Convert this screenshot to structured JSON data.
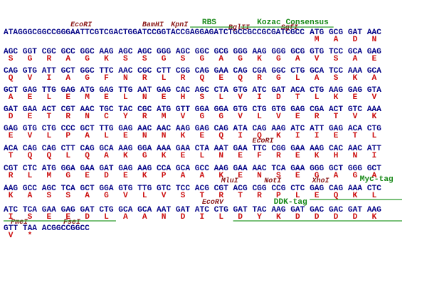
{
  "features": [
    {
      "label": "EcoRI",
      "kind": "enzyme"
    },
    {
      "label": "BamHI",
      "kind": "enzyme"
    },
    {
      "label": "KpnI",
      "kind": "enzyme"
    },
    {
      "label": "RBS",
      "kind": "tag"
    },
    {
      "label": "BglII",
      "kind": "enzyme"
    },
    {
      "label": "Kozac Consensus",
      "kind": "tag"
    },
    {
      "label": "SgfI",
      "kind": "enzyme"
    },
    {
      "label": "EcoRI",
      "kind": "enzyme"
    },
    {
      "label": "MluI",
      "kind": "enzyme"
    },
    {
      "label": "NotI",
      "kind": "enzyme"
    },
    {
      "label": "XhoI",
      "kind": "enzyme"
    },
    {
      "label": "Myc-tag",
      "kind": "tag"
    },
    {
      "label": "EcoRV",
      "kind": "enzyme"
    },
    {
      "label": "DDK-tag",
      "kind": "tag"
    },
    {
      "label": "PmeI",
      "kind": "enzyme"
    },
    {
      "label": "FseI",
      "kind": "enzyme"
    }
  ],
  "lines": [
    {
      "leader": "ATAGGGCGGCCGGGAATTCGTCGACTGGATCCGGTACCGAGGAGATCTGCCGCCGCGATCGCC",
      "codons": [
        "ATG",
        "GCG",
        "GAT",
        "AAC"
      ],
      "amino_acids": [
        "M",
        "A",
        "D",
        "N"
      ]
    },
    {
      "codons": [
        "AGC",
        "GGT",
        "CGC",
        "GCC",
        "GGC",
        "AAG",
        "AGC",
        "AGC",
        "GGG",
        "AGC",
        "GGC",
        "GCG",
        "GGG",
        "AAG",
        "GGG",
        "GCG",
        "GTG",
        "TCC",
        "GCA",
        "GAG"
      ],
      "amino_acids": [
        "S",
        "G",
        "R",
        "A",
        "G",
        "K",
        "S",
        "S",
        "G",
        "S",
        "G",
        "A",
        "G",
        "K",
        "G",
        "A",
        "V",
        "S",
        "A",
        "E"
      ]
    },
    {
      "codons": [
        "CAG",
        "GTG",
        "ATT",
        "GCT",
        "GGC",
        "TTC",
        "AAC",
        "CGC",
        "CTT",
        "CGG",
        "CAG",
        "GAA",
        "CAG",
        "CGA",
        "GGC",
        "CTG",
        "GCA",
        "TCC",
        "AAA",
        "GCA"
      ],
      "amino_acids": [
        "Q",
        "V",
        "I",
        "A",
        "G",
        "F",
        "N",
        "R",
        "L",
        "R",
        "Q",
        "E",
        "Q",
        "R",
        "G",
        "L",
        "A",
        "S",
        "K",
        "A"
      ]
    },
    {
      "codons": [
        "GCT",
        "GAG",
        "TTG",
        "GAG",
        "ATG",
        "GAG",
        "TTG",
        "AAT",
        "GAG",
        "CAC",
        "AGC",
        "CTA",
        "GTG",
        "ATC",
        "GAT",
        "ACA",
        "CTG",
        "AAG",
        "GAG",
        "GTA"
      ],
      "amino_acids": [
        "A",
        "E",
        "L",
        "E",
        "M",
        "E",
        "L",
        "N",
        "E",
        "H",
        "S",
        "L",
        "V",
        "I",
        "D",
        "T",
        "L",
        "K",
        "E",
        "V"
      ]
    },
    {
      "codons": [
        "GAT",
        "GAA",
        "ACT",
        "CGT",
        "AAC",
        "TGC",
        "TAC",
        "CGC",
        "ATG",
        "GTT",
        "GGA",
        "GGA",
        "GTG",
        "CTG",
        "GTG",
        "GAG",
        "CGA",
        "ACT",
        "GTC",
        "AAA"
      ],
      "amino_acids": [
        "D",
        "E",
        "T",
        "R",
        "N",
        "C",
        "Y",
        "R",
        "M",
        "V",
        "G",
        "G",
        "V",
        "L",
        "V",
        "E",
        "R",
        "T",
        "V",
        "K"
      ]
    },
    {
      "codons": [
        "GAG",
        "GTG",
        "CTG",
        "CCC",
        "GCT",
        "TTG",
        "GAG",
        "AAC",
        "AAC",
        "AAG",
        "GAG",
        "CAG",
        "ATA",
        "CAG",
        "AAG",
        "ATC",
        "ATT",
        "GAG",
        "ACA",
        "CTG"
      ],
      "amino_acids": [
        "E",
        "V",
        "L",
        "P",
        "A",
        "L",
        "E",
        "N",
        "N",
        "K",
        "E",
        "Q",
        "I",
        "Q",
        "K",
        "I",
        "I",
        "E",
        "T",
        "L"
      ]
    },
    {
      "codons": [
        "ACA",
        "CAG",
        "CAG",
        "CTT",
        "CAG",
        "GCA",
        "AAG",
        "GGA",
        "AAA",
        "GAA",
        "CTA",
        "AAT",
        "GAA",
        "TTC",
        "CGG",
        "GAA",
        "AAG",
        "CAC",
        "AAC",
        "ATT"
      ],
      "amino_acids": [
        "T",
        "Q",
        "Q",
        "L",
        "Q",
        "A",
        "K",
        "G",
        "K",
        "E",
        "L",
        "N",
        "E",
        "F",
        "R",
        "E",
        "K",
        "H",
        "N",
        "I"
      ]
    },
    {
      "codons": [
        "CGT",
        "CTC",
        "ATG",
        "GGA",
        "GAA",
        "GAT",
        "GAG",
        "AAG",
        "CCA",
        "GCA",
        "GCC",
        "AAG",
        "GAA",
        "AAC",
        "TCA",
        "GAA",
        "GGG",
        "GCT",
        "GGG",
        "GCT"
      ],
      "amino_acids": [
        "R",
        "L",
        "M",
        "G",
        "E",
        "D",
        "E",
        "K",
        "P",
        "A",
        "A",
        "K",
        "E",
        "N",
        "S",
        "E",
        "G",
        "A",
        "G",
        "A"
      ]
    },
    {
      "codons": [
        "AAG",
        "GCC",
        "AGC",
        "TCA",
        "GCT",
        "GGA",
        "GTG",
        "TTG",
        "GTC",
        "TCC",
        "ACG",
        "CGT",
        "ACG",
        "CGG",
        "CCG",
        "CTC",
        "GAG",
        "CAG",
        "AAA",
        "CTC"
      ],
      "amino_acids": [
        "K",
        "A",
        "S",
        "S",
        "A",
        "G",
        "V",
        "L",
        "V",
        "S",
        "T",
        "R",
        "T",
        "R",
        "P",
        "L",
        "E",
        "Q",
        "K",
        "L"
      ]
    },
    {
      "codons": [
        "ATC",
        "TCA",
        "GAA",
        "GAG",
        "GAT",
        "CTG",
        "GCA",
        "GCA",
        "AAT",
        "GAT",
        "ATC",
        "CTG",
        "GAT",
        "TAC",
        "AAG",
        "GAT",
        "GAC",
        "GAC",
        "GAT",
        "AAG"
      ],
      "amino_acids": [
        "I",
        "S",
        "E",
        "E",
        "D",
        "L",
        "A",
        "A",
        "N",
        "D",
        "I",
        "L",
        "D",
        "Y",
        "K",
        "D",
        "D",
        "D",
        "D",
        "K"
      ]
    },
    {
      "codons": [
        "GTT",
        "TAA"
      ],
      "amino_acids": [
        "V",
        "*"
      ],
      "trailer": "ACGGCCGGCC"
    }
  ]
}
